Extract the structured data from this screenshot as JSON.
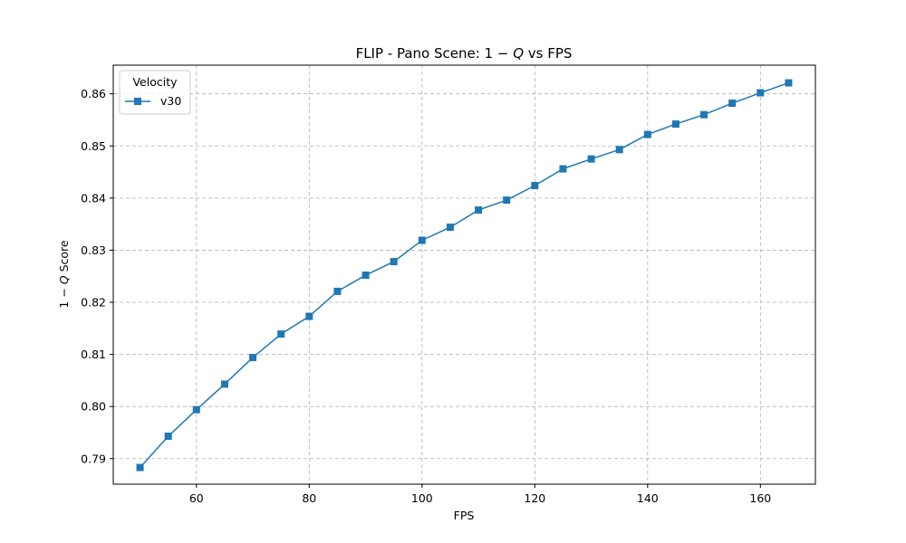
{
  "chart_data": {
    "type": "line",
    "title_prefix": "FLIP - Pano Scene: 1 − ",
    "title_var": "Q",
    "title_suffix": " vs FPS",
    "xlabel": "FPS",
    "ylabel_prefix": "1 − ",
    "ylabel_var": "Q",
    "ylabel_suffix": " Score",
    "xlim": [
      45.25,
      169.75
    ],
    "ylim": [
      0.7851,
      0.8655
    ],
    "xticks": [
      60,
      80,
      100,
      120,
      140,
      160
    ],
    "yticks": [
      0.79,
      0.8,
      0.81,
      0.82,
      0.83,
      0.84,
      0.85,
      0.86
    ],
    "xtick_labels": [
      "60",
      "80",
      "100",
      "120",
      "140",
      "160"
    ],
    "ytick_labels": [
      "0.79",
      "0.80",
      "0.81",
      "0.82",
      "0.83",
      "0.84",
      "0.85",
      "0.86"
    ],
    "grid": true,
    "legend": {
      "title": "Velocity",
      "location": "top-left"
    },
    "series": [
      {
        "name": "v30",
        "color": "#1f77b4",
        "marker": "square",
        "x": [
          50,
          55,
          60,
          65,
          70,
          75,
          80,
          85,
          90,
          95,
          100,
          105,
          110,
          115,
          120,
          125,
          130,
          135,
          140,
          145,
          150,
          155,
          160,
          165
        ],
        "y": [
          0.7883,
          0.7943,
          0.7994,
          0.8043,
          0.8094,
          0.8139,
          0.8173,
          0.8221,
          0.8252,
          0.8278,
          0.8319,
          0.8344,
          0.8377,
          0.8396,
          0.8424,
          0.8456,
          0.8475,
          0.8493,
          0.8522,
          0.8542,
          0.856,
          0.8582,
          0.8602,
          0.8621
        ]
      }
    ]
  }
}
